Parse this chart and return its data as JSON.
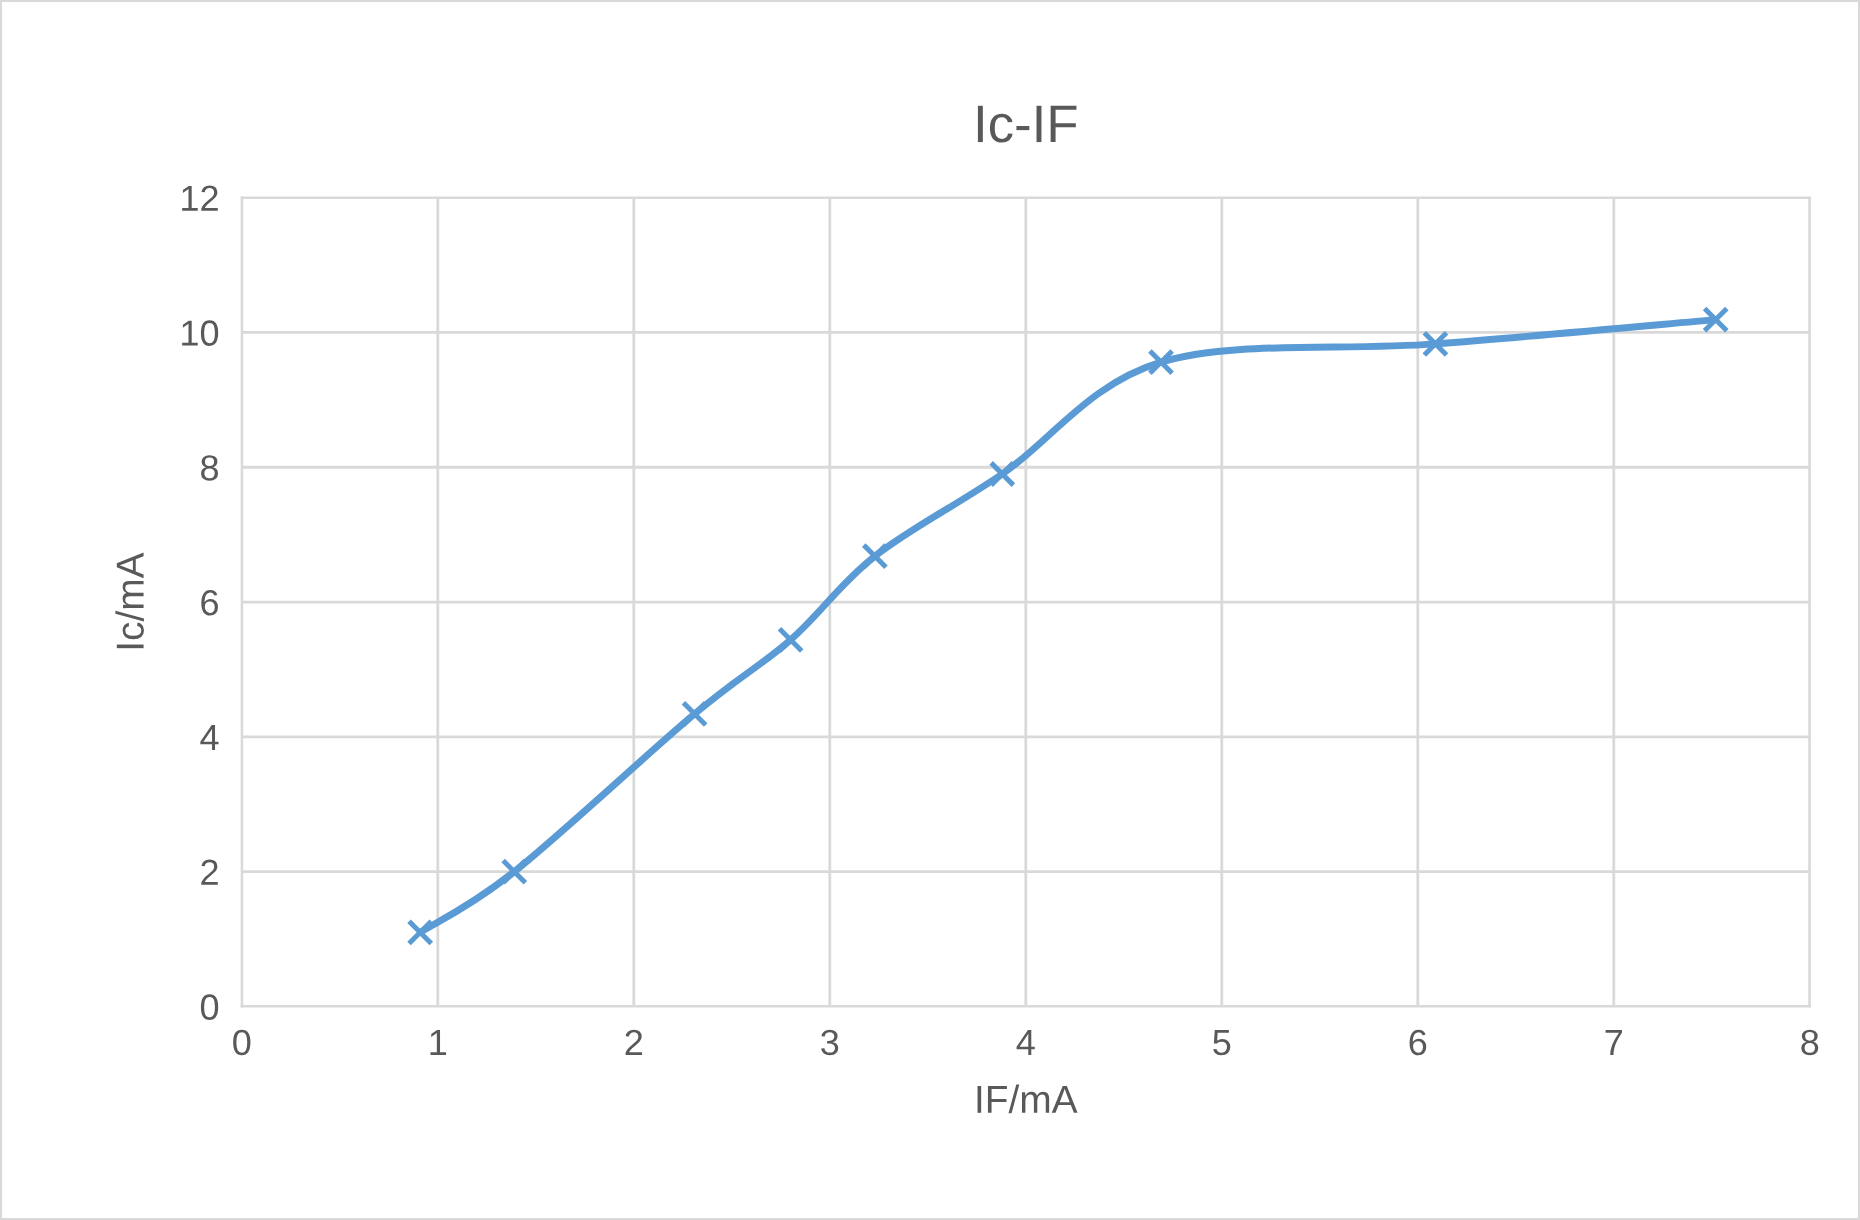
{
  "chart_data": {
    "type": "line",
    "title": "Ic-IF",
    "xlabel": "IF/mA",
    "ylabel": "Ic/mA",
    "x": [
      0.91,
      1.39,
      2.31,
      2.8,
      3.23,
      3.88,
      4.69,
      6.09,
      7.52
    ],
    "series": [
      {
        "color": "#5b9bd5",
        "values": [
          1.1,
          2.0,
          4.34,
          5.44,
          6.68,
          7.9,
          9.56,
          9.83,
          10.19
        ]
      }
    ],
    "xlim": [
      0,
      8
    ],
    "xticks": [
      0,
      1,
      2,
      3,
      4,
      5,
      6,
      7,
      8
    ],
    "ylim": [
      0,
      12
    ],
    "yticks": [
      0,
      2,
      4,
      6,
      8,
      10,
      12
    ],
    "grid": true,
    "marker": "cross",
    "line_style": "solid"
  }
}
